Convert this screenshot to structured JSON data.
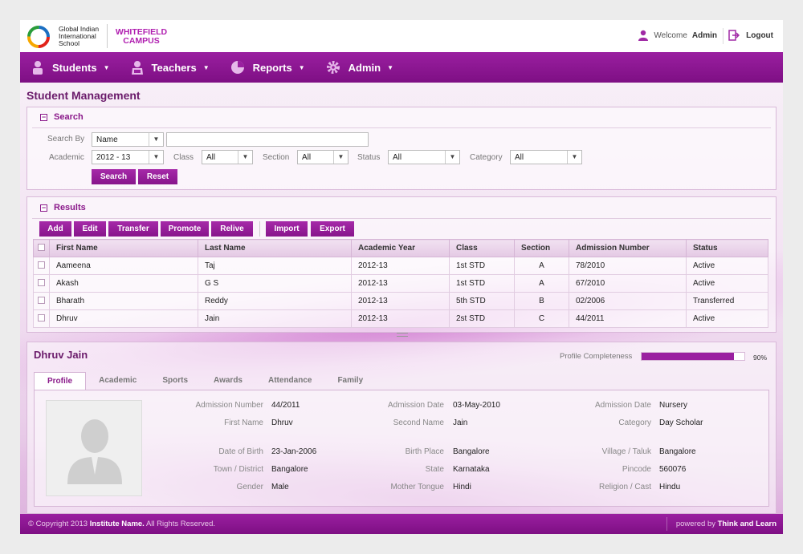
{
  "brand": {
    "school_name": "Global Indian International School",
    "campus": "WHITEFIELD CAMPUS"
  },
  "user": {
    "welcome_label": "Welcome",
    "username": "Admin",
    "logout_label": "Logout"
  },
  "nav": {
    "items": [
      {
        "label": "Students",
        "icon": "student-icon"
      },
      {
        "label": "Teachers",
        "icon": "teacher-icon"
      },
      {
        "label": "Reports",
        "icon": "pie-chart-icon"
      },
      {
        "label": "Admin",
        "icon": "gear-icon"
      }
    ]
  },
  "page_title": "Student Management",
  "search": {
    "heading": "Search",
    "search_by_label": "Search By",
    "search_by_value": "Name",
    "search_text": "",
    "academic_label": "Academic",
    "academic_value": "2012 - 13",
    "class_label": "Class",
    "class_value": "All",
    "section_label": "Section",
    "section_value": "All",
    "status_label": "Status",
    "status_value": "All",
    "category_label": "Category",
    "category_value": "All",
    "search_button": "Search",
    "reset_button": "Reset"
  },
  "results": {
    "heading": "Results",
    "actions": [
      "Add",
      "Edit",
      "Transfer",
      "Promote",
      "Relive",
      "Import",
      "Export"
    ],
    "columns": [
      "First Name",
      "Last Name",
      "Academic Year",
      "Class",
      "Section",
      "Admission Number",
      "Status"
    ],
    "rows": [
      [
        "Aameena",
        "Taj",
        "2012-13",
        "1st STD",
        "A",
        "78/2010",
        "Active"
      ],
      [
        "Akash",
        "G S",
        "2012-13",
        "1st STD",
        "A",
        "67/2010",
        "Active"
      ],
      [
        "Bharath",
        "Reddy",
        "2012-13",
        "5th STD",
        "B",
        "02/2006",
        "Transferred"
      ],
      [
        "Dhruv",
        "Jain",
        "2012-13",
        "2st STD",
        "C",
        "44/2011",
        "Active"
      ]
    ]
  },
  "profile": {
    "name": "Dhruv Jain",
    "completeness_label": "Profile Completeness",
    "completeness_percent": 90,
    "completeness_text": "90%",
    "tabs": [
      "Profile",
      "Academic",
      "Sports",
      "Awards",
      "Attendance",
      "Family"
    ],
    "active_tab": "Profile",
    "fields": {
      "admission_number": {
        "label": "Admission Number",
        "value": "44/2011"
      },
      "admission_date": {
        "label": "Admission Date",
        "value": "03-May-2010"
      },
      "admission_class": {
        "label": "Admission Date",
        "value": "Nursery"
      },
      "first_name": {
        "label": "First Name",
        "value": "Dhruv"
      },
      "second_name": {
        "label": "Second Name",
        "value": "Jain"
      },
      "category": {
        "label": "Category",
        "value": "Day Scholar"
      },
      "dob": {
        "label": "Date of Birth",
        "value": "23-Jan-2006"
      },
      "birth_place": {
        "label": "Birth Place",
        "value": "Bangalore"
      },
      "village": {
        "label": "Village / Taluk",
        "value": "Bangalore"
      },
      "town": {
        "label": "Town / District",
        "value": "Bangalore"
      },
      "state": {
        "label": "State",
        "value": "Karnataka"
      },
      "pincode": {
        "label": "Pincode",
        "value": "560076"
      },
      "gender": {
        "label": "Gender",
        "value": "Male"
      },
      "mother_tongue": {
        "label": "Mother Tongue",
        "value": "Hindi"
      },
      "religion": {
        "label": "Religion / Cast",
        "value": "Hindu"
      }
    }
  },
  "footer": {
    "copyright": "© Copyright 2013",
    "institute": "Institute Name.",
    "rights": "All Rights Reserved.",
    "powered_by": "powered by",
    "vendor": "Think and Learn"
  },
  "colors": {
    "brand_purple": "#8a198a",
    "nav_bg": "#9a1fa0"
  }
}
